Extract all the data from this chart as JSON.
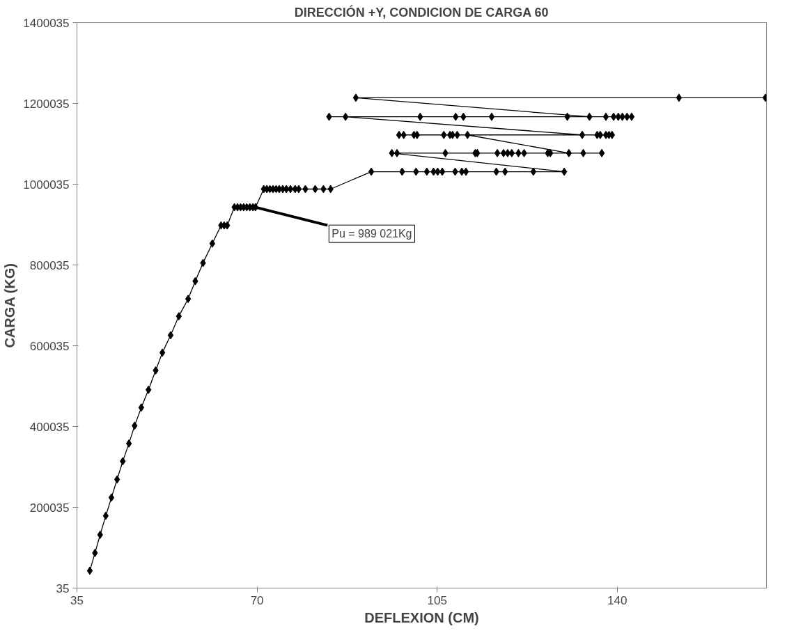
{
  "chart_data": {
    "type": "line",
    "title": "DIRECCIÓN +Y, CONDICION DE CARGA 60",
    "xlabel": "DEFLEXION (CM)",
    "ylabel": "CARGA (KG)",
    "xlim": [
      35,
      169
    ],
    "xticks": [
      35,
      70,
      105,
      140
    ],
    "ylim": [
      35,
      1400035
    ],
    "yticks": [
      35,
      200035,
      400035,
      600035,
      800035,
      1000035,
      1200035,
      1400035
    ],
    "grid": false,
    "marker": "diamond",
    "line_style": "solid",
    "annotations": [
      {
        "text": "Pu = 989 021Kg",
        "x": 69.7,
        "y": 943000
      }
    ],
    "series": [
      {
        "color": "#000000",
        "x": [
          37.5,
          38.5,
          39.5,
          40.6,
          41.7,
          42.8,
          43.9,
          45.1,
          46.2,
          47.5,
          48.9,
          50.3,
          51.6,
          53.2,
          54.8,
          56.6,
          58.0,
          59.5,
          61.3,
          63.0,
          63.6,
          64.2,
          65.6,
          66.2,
          66.8,
          67.4,
          68.0,
          68.6,
          69.2,
          69.7,
          71.3,
          71.9,
          72.5,
          73.1,
          73.7,
          74.3,
          75.0,
          75.7,
          76.5,
          77.4,
          78.1,
          79.4,
          81.3,
          82.9,
          84.3,
          92.2,
          98.2,
          100.9,
          103.0,
          104.3,
          105.1,
          106.0,
          108.5,
          109.8,
          110.6,
          116.5,
          118.2,
          123.7,
          129.7,
          96.2,
          97.2,
          106.6,
          112.4,
          112.8,
          116.7,
          117.9,
          118.7,
          119.5,
          120.8,
          121.9,
          126.5,
          127.0,
          137.0,
          133.4,
          130.6,
          110.9,
          108.9,
          108.0,
          107.5,
          106.3,
          101.1,
          100.5,
          98.5,
          97.6,
          139.0,
          138.4,
          137.8,
          136.7,
          136.1,
          133.2,
          87.2,
          84.0,
          101.7,
          108.6,
          110.1,
          115.6,
          130.3,
          142.8,
          141.9,
          141.0,
          140.2,
          139.3,
          137.8,
          134.6,
          89.2,
          152.0,
          168.8
        ],
        "values": [
          43000,
          87000,
          132000,
          179000,
          224000,
          269000,
          314000,
          358000,
          402000,
          447000,
          491000,
          539000,
          583000,
          626000,
          673000,
          716000,
          760000,
          805000,
          853000,
          898000,
          898000,
          898000,
          943000,
          943000,
          943000,
          943000,
          943000,
          943000,
          943000,
          943000,
          988000,
          988000,
          988000,
          988000,
          988000,
          988000,
          988000,
          988000,
          988000,
          988000,
          988000,
          988000,
          988000,
          988000,
          988000,
          1031000,
          1031000,
          1031000,
          1031000,
          1031000,
          1031000,
          1031000,
          1031000,
          1031000,
          1031000,
          1031000,
          1031000,
          1031000,
          1031000,
          1077000,
          1077000,
          1077000,
          1077000,
          1077000,
          1077000,
          1077000,
          1077000,
          1077000,
          1077000,
          1077000,
          1077000,
          1077000,
          1077000,
          1077000,
          1077000,
          1122000,
          1122000,
          1122000,
          1122000,
          1122000,
          1122000,
          1122000,
          1122000,
          1122000,
          1122000,
          1122000,
          1122000,
          1122000,
          1122000,
          1122000,
          1167000,
          1167000,
          1167000,
          1167000,
          1167000,
          1167000,
          1167000,
          1167000,
          1167000,
          1167000,
          1167000,
          1167000,
          1167000,
          1167000,
          1214000,
          1214000,
          1214000
        ]
      }
    ]
  }
}
